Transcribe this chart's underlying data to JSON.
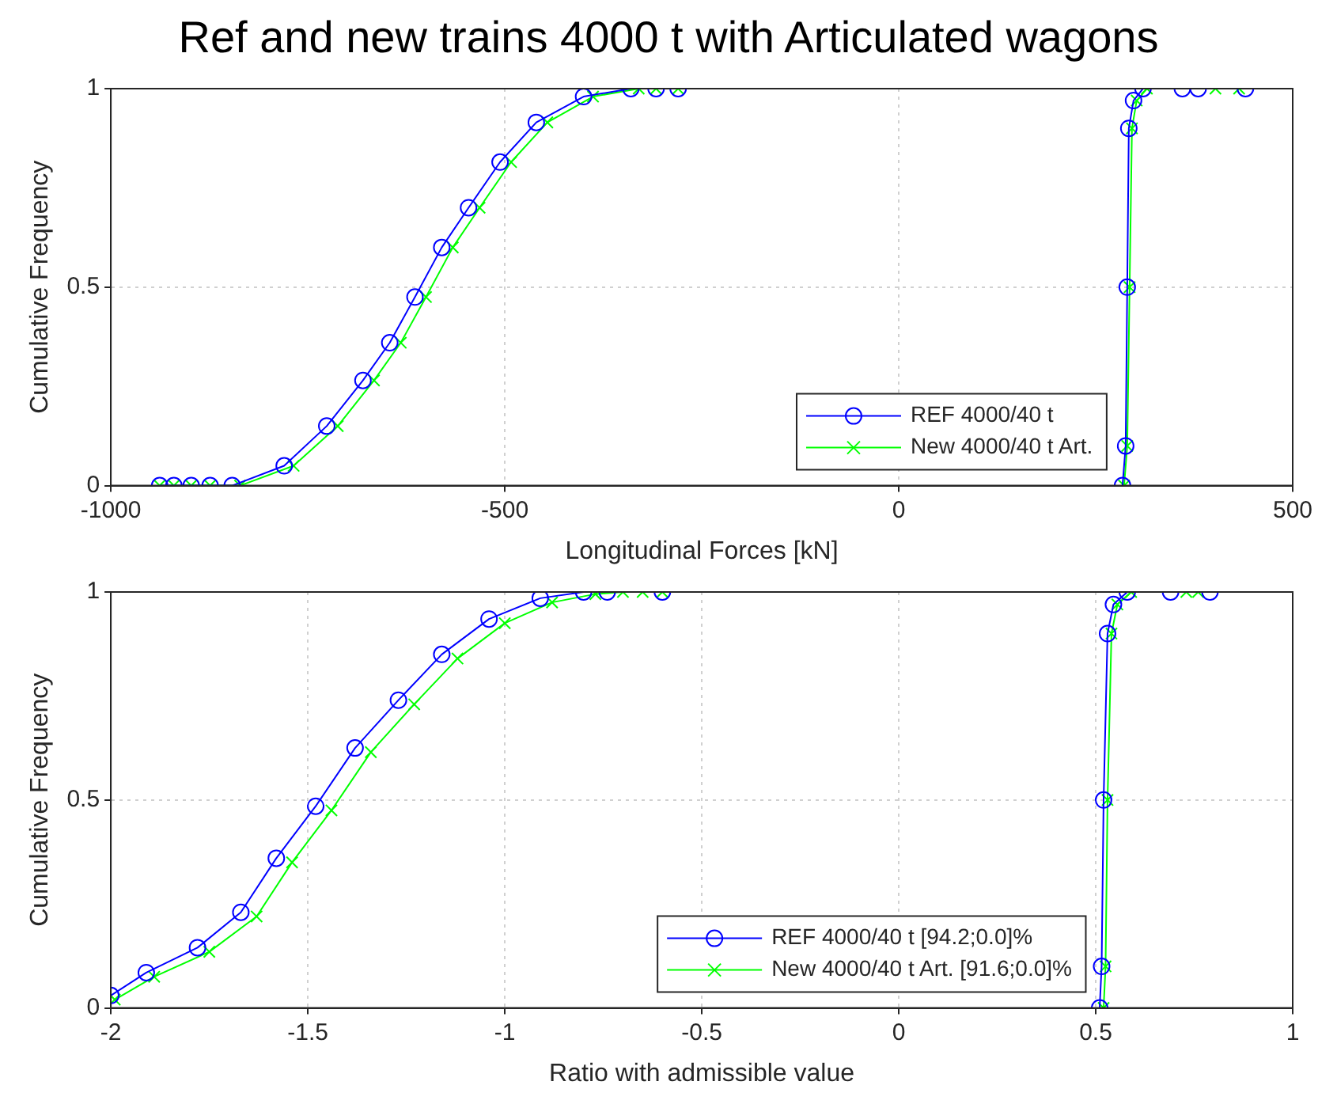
{
  "chart_data": [
    {
      "type": "line",
      "title": "Ref and new trains 4000 t with Articulated wagons",
      "xlabel": "Longitudinal Forces [kN]",
      "ylabel": "Cumulative Frequency",
      "xlim": [
        -1000,
        500
      ],
      "xticks": [
        -1000,
        -500,
        0,
        500
      ],
      "ylim": [
        0,
        1
      ],
      "yticks": [
        0,
        0.5,
        1
      ],
      "grid": true,
      "legend": "bottom right",
      "series": [
        {
          "name": "REF 4000/40 t",
          "color": "#0000ff",
          "marker": "circle",
          "x": [
            -938,
            -920,
            -898,
            -874,
            -846,
            -780,
            -726,
            -680,
            -646,
            -614,
            -580,
            -546,
            -506,
            -460,
            -400,
            -340,
            -308,
            -280
          ],
          "values": [
            0,
            0,
            0,
            0,
            0,
            0.05,
            0.15,
            0.265,
            0.36,
            0.475,
            0.6,
            0.7,
            0.815,
            0.915,
            0.98,
            1,
            1,
            1
          ]
        },
        {
          "name": "New 4000/40 t Art.",
          "color": "#00ff00",
          "marker": "cross",
          "x": [
            -938,
            -920,
            -898,
            -874,
            -836,
            -768,
            -712,
            -666,
            -632,
            -600,
            -566,
            -532,
            -492,
            -446,
            -388,
            -330,
            -308,
            -280
          ],
          "values": [
            0,
            0,
            0,
            0,
            0,
            0.05,
            0.15,
            0.265,
            0.36,
            0.475,
            0.6,
            0.7,
            0.815,
            0.915,
            0.98,
            1,
            1,
            1
          ]
        },
        {
          "color": "#0000ff",
          "marker": "circle",
          "x": [
            284,
            288,
            290,
            292,
            298,
            310,
            360,
            380,
            440
          ],
          "values": [
            0,
            0.1,
            0.5,
            0.9,
            0.97,
            1,
            1,
            1,
            1
          ]
        },
        {
          "color": "#00ff00",
          "marker": "cross",
          "x": [
            286,
            290,
            293,
            296,
            302,
            315,
            402,
            432
          ],
          "values": [
            0,
            0.1,
            0.5,
            0.9,
            0.97,
            1,
            1,
            1
          ]
        }
      ]
    },
    {
      "type": "line",
      "xlabel": "Ratio with admissible value",
      "ylabel": "Cumulative Frequency",
      "xlim": [
        -2,
        1
      ],
      "xticks": [
        -2,
        -1.5,
        -1,
        -0.5,
        0,
        0.5,
        1
      ],
      "ylim": [
        0,
        1
      ],
      "yticks": [
        0,
        0.5,
        1
      ],
      "grid": true,
      "legend": "bottom right",
      "series": [
        {
          "name": "REF 4000/40 t [94.2;0.0]%",
          "color": "#0000ff",
          "marker": "circle",
          "x": [
            -2,
            -1.91,
            -1.78,
            -1.67,
            -1.58,
            -1.48,
            -1.38,
            -1.27,
            -1.16,
            -1.04,
            -0.91,
            -0.8,
            -0.74,
            -0.6
          ],
          "values": [
            0.03,
            0.085,
            0.145,
            0.23,
            0.36,
            0.485,
            0.625,
            0.74,
            0.85,
            0.935,
            0.985,
            1,
            1,
            1
          ]
        },
        {
          "name": "New 4000/40 t Art. [91.6;0.0]%",
          "color": "#00ff00",
          "marker": "cross",
          "x": [
            -1.99,
            -1.89,
            -1.75,
            -1.63,
            -1.54,
            -1.44,
            -1.34,
            -1.23,
            -1.12,
            -1.0,
            -0.88,
            -0.77,
            -0.7,
            -0.65,
            -0.6
          ],
          "values": [
            0.02,
            0.075,
            0.135,
            0.22,
            0.35,
            0.475,
            0.615,
            0.73,
            0.84,
            0.925,
            0.975,
            0.995,
            1,
            1,
            1
          ]
        },
        {
          "color": "#0000ff",
          "marker": "circle",
          "x": [
            0.51,
            0.515,
            0.52,
            0.53,
            0.545,
            0.58,
            0.69,
            0.79
          ],
          "values": [
            0,
            0.1,
            0.5,
            0.9,
            0.97,
            1,
            1,
            1
          ]
        },
        {
          "color": "#00ff00",
          "marker": "cross",
          "x": [
            0.52,
            0.525,
            0.53,
            0.54,
            0.555,
            0.59,
            0.73,
            0.76
          ],
          "values": [
            0,
            0.1,
            0.5,
            0.9,
            0.97,
            1,
            1,
            1
          ]
        }
      ]
    }
  ]
}
